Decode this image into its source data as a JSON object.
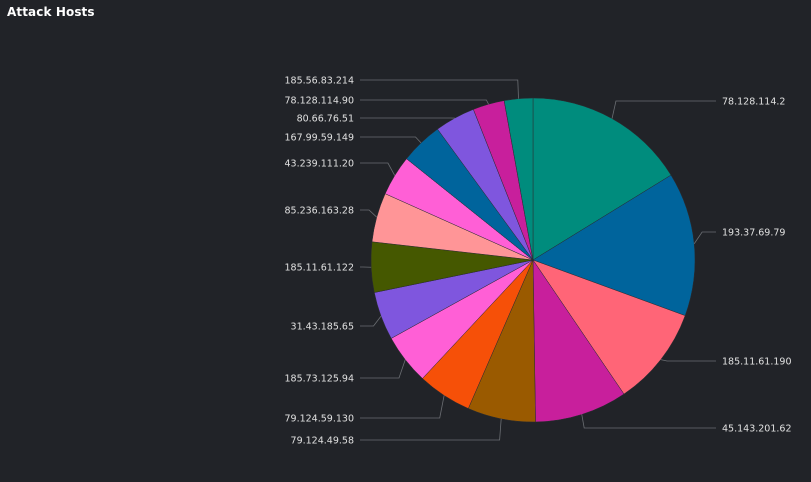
{
  "panel": {
    "title": "Attack Hosts"
  },
  "chart_data": {
    "type": "pie",
    "title": "Attack Hosts",
    "labels": [
      "78.128.114.2",
      "193.37.69.79",
      "185.11.61.190",
      "45.143.201.62",
      "79.124.49.58",
      "79.124.59.130",
      "185.73.125.94",
      "31.43.185.65",
      "185.11.61.122",
      "85.236.163.28",
      "43.239.111.20",
      "167.99.59.149",
      "80.66.76.51",
      "78.128.114.90",
      "185.56.83.214"
    ],
    "values": [
      16.5,
      14.6,
      10.1,
      9.4,
      6.9,
      5.5,
      5.1,
      4.9,
      5.1,
      5.0,
      4.1,
      4.3,
      4.1,
      3.2,
      2.9
    ],
    "colors": [
      "#008c7d",
      "#00649c",
      "#ff6577",
      "#c81f9c",
      "#9a5a00",
      "#f65008",
      "#ff5fd6",
      "#7f56de",
      "#455800",
      "#ff9597",
      "#ff5fd6",
      "#00649c",
      "#7f56de",
      "#c81f9c",
      "#008c7d"
    ]
  }
}
